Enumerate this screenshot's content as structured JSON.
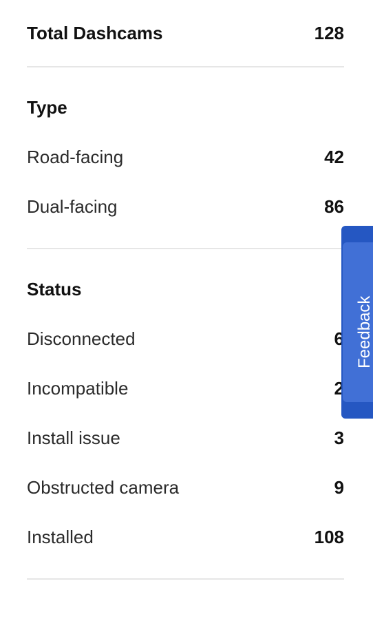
{
  "summary": {
    "total_label": "Total Dashcams",
    "total_value": "128"
  },
  "type_section": {
    "heading": "Type",
    "items": [
      {
        "label": "Road-facing",
        "value": "42"
      },
      {
        "label": "Dual-facing",
        "value": "86"
      }
    ]
  },
  "status_section": {
    "heading": "Status",
    "items": [
      {
        "label": "Disconnected",
        "value": "6"
      },
      {
        "label": "Incompatible",
        "value": "2"
      },
      {
        "label": "Install issue",
        "value": "3"
      },
      {
        "label": "Obstructed camera",
        "value": "9"
      },
      {
        "label": "Installed",
        "value": "108"
      }
    ]
  },
  "feedback": {
    "label": "Feedback"
  }
}
